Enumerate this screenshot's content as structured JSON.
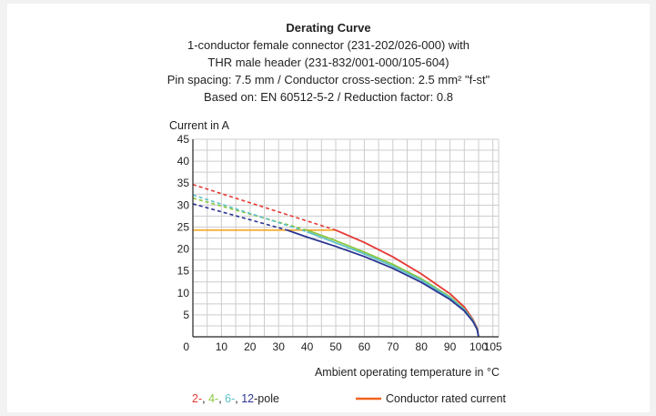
{
  "chart_data": {
    "type": "line",
    "title": "Derating Curve",
    "subtitle_lines": [
      "1-conductor female connector (231-202/026-000) with",
      "THR male header (231-832/001-000/105-604)",
      "Pin spacing: 7.5 mm / Conductor cross-section: 2.5 mm² \"f-st\"",
      "Based on: EN 60512-5-2 / Reduction factor: 0.8"
    ],
    "ylabel": "Current in A",
    "xlabel": "Ambient operating temperature in °C",
    "xlim": [
      0,
      107
    ],
    "ylim": [
      0,
      45
    ],
    "x_ticks": [
      "0",
      "10",
      "20",
      "30",
      "40",
      "50",
      "60",
      "70",
      "80",
      "90",
      "100",
      "105"
    ],
    "y_ticks": [
      "0",
      "5",
      "10",
      "15",
      "20",
      "25",
      "30",
      "35",
      "40",
      "45"
    ],
    "grid": true,
    "colors": {
      "pole_2": "#e53935",
      "pole_4": "#8cc63f",
      "pole_6": "#5bc0c8",
      "pole_12": "#2a3490",
      "rated_current": "#f5a623",
      "legend_rated_line": "#f26522",
      "axis": "#222222",
      "grid": "#cccccc"
    },
    "series": [
      {
        "name": "2",
        "color": "#e53935",
        "dashed": [
          [
            0,
            34.7
          ],
          [
            50,
            24.3
          ]
        ],
        "solid": [
          [
            50,
            24.3
          ],
          [
            60,
            21.5
          ],
          [
            70,
            18.2
          ],
          [
            80,
            14.3
          ],
          [
            90,
            9.8
          ],
          [
            95,
            6.8
          ],
          [
            98,
            4.0
          ],
          [
            99.5,
            2.0
          ],
          [
            100,
            0
          ]
        ]
      },
      {
        "name": "4",
        "color": "#8cc63f",
        "dashed": [
          [
            0,
            31.6
          ],
          [
            40,
            24.3
          ]
        ],
        "solid": [
          [
            40,
            24.3
          ],
          [
            50,
            21.9
          ],
          [
            60,
            19.3
          ],
          [
            70,
            16.5
          ],
          [
            80,
            13.2
          ],
          [
            90,
            9.1
          ],
          [
            95,
            6.3
          ],
          [
            98,
            3.8
          ],
          [
            99.5,
            1.8
          ],
          [
            100,
            0
          ]
        ]
      },
      {
        "name": "6",
        "color": "#5bc0c8",
        "dashed": [
          [
            0,
            32.3
          ],
          [
            40,
            23.9
          ]
        ],
        "solid": [
          [
            40,
            23.9
          ],
          [
            50,
            21.4
          ],
          [
            60,
            18.9
          ],
          [
            70,
            16.1
          ],
          [
            80,
            12.9
          ],
          [
            90,
            8.9
          ],
          [
            95,
            6.2
          ],
          [
            98,
            3.7
          ],
          [
            99.5,
            1.8
          ],
          [
            100,
            0
          ]
        ]
      },
      {
        "name": "12",
        "color": "#2a3490",
        "dashed": [
          [
            0,
            30.3
          ],
          [
            33,
            24.3
          ]
        ],
        "solid": [
          [
            33,
            24.3
          ],
          [
            40,
            22.7
          ],
          [
            50,
            20.6
          ],
          [
            60,
            18.3
          ],
          [
            70,
            15.6
          ],
          [
            80,
            12.4
          ],
          [
            90,
            8.5
          ],
          [
            95,
            5.9
          ],
          [
            98,
            3.5
          ],
          [
            99.5,
            1.7
          ],
          [
            100,
            0
          ]
        ]
      }
    ],
    "rated_current": {
      "name": "Conductor rated current",
      "value": 24.3,
      "x_range": [
        0,
        50
      ]
    },
    "legend": {
      "placement": "bottom",
      "poles": [
        {
          "text": "2-",
          "color": "#e53935"
        },
        {
          "text": ", ",
          "color": "#222222"
        },
        {
          "text": "4-",
          "color": "#8cc63f"
        },
        {
          "text": ", ",
          "color": "#222222"
        },
        {
          "text": "6-",
          "color": "#5bc0c8"
        },
        {
          "text": ", ",
          "color": "#222222"
        },
        {
          "text": "12",
          "color": "#2a3490"
        },
        {
          "text": "-pole",
          "color": "#222222"
        }
      ],
      "rated_label": "Conductor rated current"
    }
  }
}
